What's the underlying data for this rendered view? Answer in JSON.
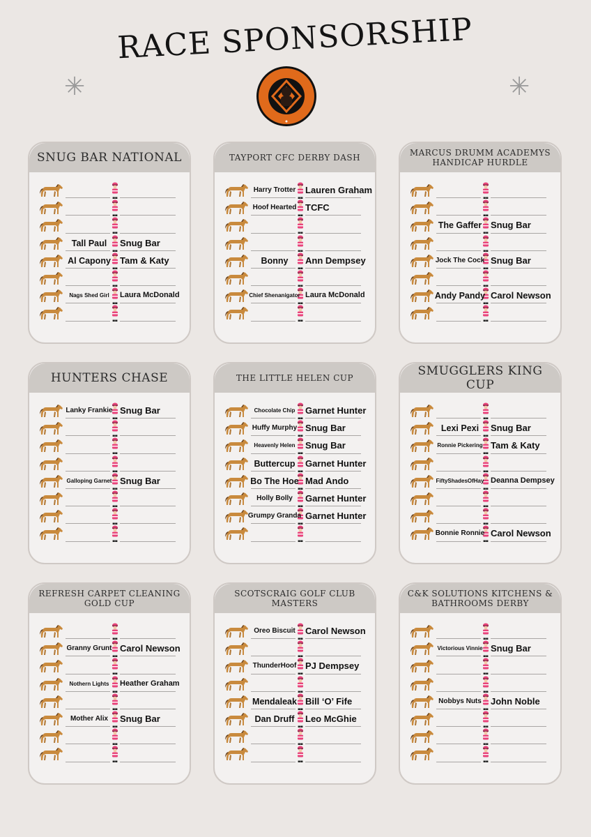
{
  "page": {
    "title": "RACE SPONSORSHIP",
    "sparkle_glyph": "✳"
  },
  "logo": {
    "top_text": "THE PAUL DEMPSEY",
    "bottom_text": "FAMILY & FRIENDS MATCH",
    "year": "2019",
    "ring_color": "#e06a1b"
  },
  "icons": {
    "horse": "horse-icon",
    "jockey": "jockey-icon"
  },
  "colors": {
    "horse": "#c98a3d",
    "jockey_silk": "#e8437a",
    "header_bg": "#cdc9c5",
    "card_bg": "#f3f1f0"
  },
  "races": [
    {
      "title": "SNUG BAR NATIONAL",
      "header_size": "big",
      "rows": [
        {
          "horse": "",
          "sponsor": ""
        },
        {
          "horse": "",
          "sponsor": ""
        },
        {
          "horse": "",
          "sponsor": ""
        },
        {
          "horse": "Tall Paul",
          "sponsor": "Snug Bar"
        },
        {
          "horse": "Al Capony",
          "sponsor": "Tam & Katy"
        },
        {
          "horse": "",
          "sponsor": ""
        },
        {
          "horse": "Nags Shed Girl",
          "sponsor": "Laura McDonald"
        },
        {
          "horse": "",
          "sponsor": ""
        }
      ]
    },
    {
      "title": "TAYPORT CFC DERBY DASH",
      "header_size": "small",
      "rows": [
        {
          "horse": "Harry Trotter",
          "sponsor": "Lauren Graham"
        },
        {
          "horse": "Hoof Hearted",
          "sponsor": "TCFC"
        },
        {
          "horse": "",
          "sponsor": ""
        },
        {
          "horse": "",
          "sponsor": ""
        },
        {
          "horse": "Bonny",
          "sponsor": "Ann Dempsey"
        },
        {
          "horse": "",
          "sponsor": ""
        },
        {
          "horse": "Chief Shenanigator",
          "sponsor": "Laura McDonald"
        },
        {
          "horse": "",
          "sponsor": ""
        }
      ]
    },
    {
      "title": "MARCUS DRUMM ACADEMYS HANDICAP HURDLE",
      "header_size": "small",
      "rows": [
        {
          "horse": "",
          "sponsor": ""
        },
        {
          "horse": "",
          "sponsor": ""
        },
        {
          "horse": "The Gaffer",
          "sponsor": "Snug Bar"
        },
        {
          "horse": "",
          "sponsor": ""
        },
        {
          "horse": "Jock The Cock",
          "sponsor": "Snug Bar"
        },
        {
          "horse": "",
          "sponsor": ""
        },
        {
          "horse": "Andy Pandy",
          "sponsor": "Carol Newson"
        },
        {
          "horse": "",
          "sponsor": ""
        }
      ]
    },
    {
      "title": "HUNTERS CHASE",
      "header_size": "big",
      "rows": [
        {
          "horse": "Lanky Frankie",
          "sponsor": "Snug Bar"
        },
        {
          "horse": "",
          "sponsor": ""
        },
        {
          "horse": "",
          "sponsor": ""
        },
        {
          "horse": "",
          "sponsor": ""
        },
        {
          "horse": "Galloping Garnet",
          "sponsor": "Snug Bar"
        },
        {
          "horse": "",
          "sponsor": ""
        },
        {
          "horse": "",
          "sponsor": ""
        },
        {
          "horse": "",
          "sponsor": ""
        }
      ]
    },
    {
      "title": "THE LITTLE HELEN CUP",
      "header_size": "small",
      "rows": [
        {
          "horse": "Chocolate Chip",
          "sponsor": "Garnet Hunter"
        },
        {
          "horse": "Huffy Murphy",
          "sponsor": "Snug Bar"
        },
        {
          "horse": "Heavenly Helen",
          "sponsor": "Snug Bar"
        },
        {
          "horse": "Buttercup",
          "sponsor": "Garnet Hunter"
        },
        {
          "horse": "Bo The Hoe",
          "sponsor": "Mad Ando"
        },
        {
          "horse": "Holly Bolly",
          "sponsor": "Garnet Hunter"
        },
        {
          "horse": "Grumpy Granda",
          "sponsor": "Garnet Hunter"
        },
        {
          "horse": "",
          "sponsor": ""
        }
      ]
    },
    {
      "title": "SMUGGLERS KING CUP",
      "header_size": "big",
      "rows": [
        {
          "horse": "",
          "sponsor": ""
        },
        {
          "horse": "Lexi Pexi",
          "sponsor": "Snug Bar"
        },
        {
          "horse": "Ronnie Pickering",
          "sponsor": "Tam & Katy"
        },
        {
          "horse": "",
          "sponsor": ""
        },
        {
          "horse": "FiftyShadesOfHay",
          "sponsor": "Deanna Dempsey"
        },
        {
          "horse": "",
          "sponsor": ""
        },
        {
          "horse": "",
          "sponsor": ""
        },
        {
          "horse": "Bonnie Ronnie",
          "sponsor": "Carol Newson"
        }
      ]
    },
    {
      "title": "REFRESH CARPET CLEANING GOLD CUP",
      "header_size": "small",
      "rows": [
        {
          "horse": "",
          "sponsor": ""
        },
        {
          "horse": "Granny Grunt",
          "sponsor": "Carol Newson"
        },
        {
          "horse": "",
          "sponsor": ""
        },
        {
          "horse": "Nothern Lights",
          "sponsor": "Heather Graham"
        },
        {
          "horse": "",
          "sponsor": ""
        },
        {
          "horse": "Mother Alix",
          "sponsor": "Snug Bar"
        },
        {
          "horse": "",
          "sponsor": ""
        },
        {
          "horse": "",
          "sponsor": ""
        }
      ]
    },
    {
      "title": "SCOTSCRAIG GOLF CLUB MASTERS",
      "header_size": "small",
      "rows": [
        {
          "horse": "Oreo Biscuit",
          "sponsor": "Carol Newson"
        },
        {
          "horse": "",
          "sponsor": ""
        },
        {
          "horse": "ThunderHoof",
          "sponsor": "PJ Dempsey"
        },
        {
          "horse": "",
          "sponsor": ""
        },
        {
          "horse": "Mendaleak",
          "sponsor": "Bill ‘O’ Fife"
        },
        {
          "horse": "Dan Druff",
          "sponsor": "Leo McGhie"
        },
        {
          "horse": "",
          "sponsor": ""
        },
        {
          "horse": "",
          "sponsor": ""
        }
      ]
    },
    {
      "title": "C&K SOLUTIONS KITCHENS & BATHROOMS DERBY",
      "header_size": "small",
      "rows": [
        {
          "horse": "",
          "sponsor": ""
        },
        {
          "horse": "Victorious Vinnie",
          "sponsor": "Snug Bar"
        },
        {
          "horse": "",
          "sponsor": ""
        },
        {
          "horse": "",
          "sponsor": ""
        },
        {
          "horse": "Nobbys Nuts",
          "sponsor": "John Noble"
        },
        {
          "horse": "",
          "sponsor": ""
        },
        {
          "horse": "",
          "sponsor": ""
        },
        {
          "horse": "",
          "sponsor": ""
        }
      ]
    }
  ]
}
